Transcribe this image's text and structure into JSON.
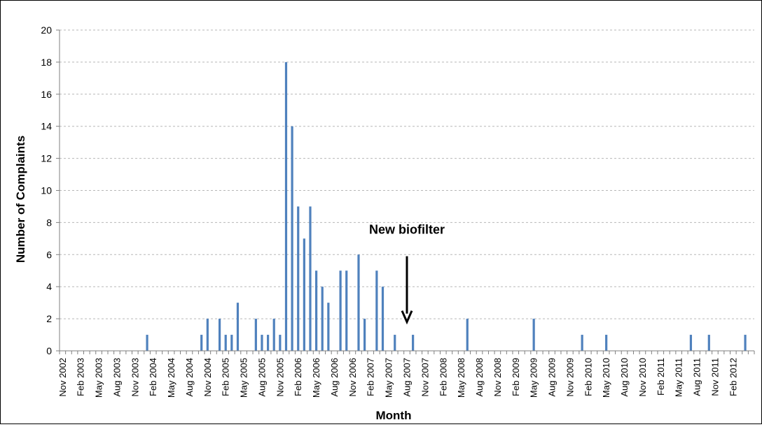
{
  "chart_data": {
    "type": "bar",
    "title": "",
    "xlabel": "Month",
    "ylabel": "Number of Complaints",
    "ylim": [
      0,
      20
    ],
    "yticks": [
      0,
      2,
      4,
      6,
      8,
      10,
      12,
      14,
      16,
      18,
      20
    ],
    "grid": true,
    "legend": "none",
    "colors": {
      "bar": "#4f81bd",
      "grid": "#b7b7b7",
      "axis": "#7f7f7f"
    },
    "x_start": "Nov 2002",
    "tick_labels": [
      "Nov 2002",
      "Feb 2003",
      "May 2003",
      "Aug 2003",
      "Nov 2003",
      "Feb 2004",
      "May 2004",
      "Aug 2004",
      "Nov 2004",
      "Feb 2005",
      "May 2005",
      "Aug 2005",
      "Nov 2005",
      "Feb 2006",
      "May 2006",
      "Aug 2006",
      "Nov 2006",
      "Feb 2007",
      "May 2007",
      "Aug 2007",
      "Nov 2007",
      "Feb 2008",
      "May 2008",
      "Aug 2008",
      "Nov 2008",
      "Feb 2009",
      "May 2009",
      "Aug 2009",
      "Nov 2009",
      "Feb 2010",
      "May 2010",
      "Aug 2010",
      "Nov 2010",
      "Feb 2011",
      "May 2011",
      "Aug 2011",
      "Nov 2011",
      "Feb 2012"
    ],
    "points": [
      {
        "month": "Jan 2004",
        "value": 1
      },
      {
        "month": "Oct 2004",
        "value": 1
      },
      {
        "month": "Nov 2004",
        "value": 2
      },
      {
        "month": "Jan 2005",
        "value": 2
      },
      {
        "month": "Feb 2005",
        "value": 1
      },
      {
        "month": "Mar 2005",
        "value": 1
      },
      {
        "month": "Apr 2005",
        "value": 3
      },
      {
        "month": "Jul 2005",
        "value": 2
      },
      {
        "month": "Aug 2005",
        "value": 1
      },
      {
        "month": "Sep 2005",
        "value": 1
      },
      {
        "month": "Oct 2005",
        "value": 2
      },
      {
        "month": "Nov 2005",
        "value": 1
      },
      {
        "month": "Dec 2005",
        "value": 18
      },
      {
        "month": "Jan 2006",
        "value": 14
      },
      {
        "month": "Feb 2006",
        "value": 9
      },
      {
        "month": "Mar 2006",
        "value": 7
      },
      {
        "month": "Apr 2006",
        "value": 9
      },
      {
        "month": "May 2006",
        "value": 5
      },
      {
        "month": "Jun 2006",
        "value": 4
      },
      {
        "month": "Jul 2006",
        "value": 3
      },
      {
        "month": "Sep 2006",
        "value": 5
      },
      {
        "month": "Oct 2006",
        "value": 5
      },
      {
        "month": "Dec 2006",
        "value": 6
      },
      {
        "month": "Jan 2007",
        "value": 2
      },
      {
        "month": "Mar 2007",
        "value": 5
      },
      {
        "month": "Apr 2007",
        "value": 4
      },
      {
        "month": "Jun 2007",
        "value": 1
      },
      {
        "month": "Sep 2007",
        "value": 1
      },
      {
        "month": "Jun 2008",
        "value": 2
      },
      {
        "month": "May 2009",
        "value": 2
      },
      {
        "month": "Jan 2010",
        "value": 1
      },
      {
        "month": "May 2010",
        "value": 1
      },
      {
        "month": "Jul 2011",
        "value": 1
      },
      {
        "month": "Oct 2011",
        "value": 1
      },
      {
        "month": "Apr 2012",
        "value": 1
      }
    ],
    "annotations": [
      {
        "text": "New biofilter",
        "month": "Aug 2007",
        "arrow": "down",
        "arrow_tip_value": 1.8
      }
    ]
  }
}
